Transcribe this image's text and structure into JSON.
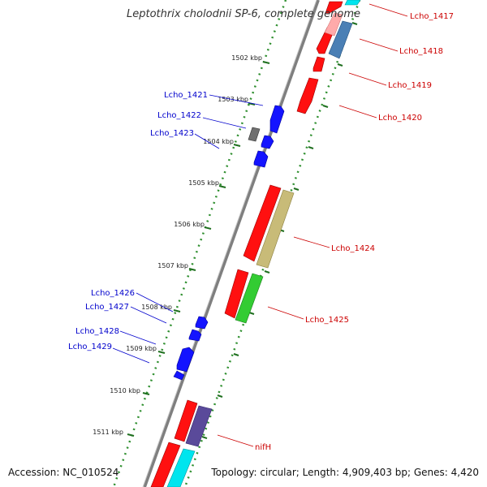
{
  "title": "Leptothrix cholodnii SP-6, complete genome",
  "accession": "Accession: NC_010524",
  "topology": "Topology: circular; Length: 4,909,403 bp; Genes: 4,420",
  "colors": {
    "backbone": "#808080",
    "forward_label": "#0000cc",
    "reverse_label": "#cc0000",
    "tick_line": "#2f8f2f",
    "tick_mark": "#1f6f1f"
  },
  "ticks": [
    "1502 kbp",
    "1503 kbp",
    "1504 kbp",
    "1505 kbp",
    "1506 kbp",
    "1507 kbp",
    "1508 kbp",
    "1509 kbp",
    "1510 kbp",
    "1511 kbp"
  ],
  "forward_labels": [
    "Lcho_1421",
    "Lcho_1422",
    "Lcho_1423",
    "Lcho_1426",
    "Lcho_1427",
    "Lcho_1428",
    "Lcho_1429"
  ],
  "reverse_labels": [
    "Lcho_1417",
    "Lcho_1418",
    "Lcho_1419",
    "Lcho_1420",
    "Lcho_1424",
    "Lcho_1425",
    "nifH"
  ]
}
